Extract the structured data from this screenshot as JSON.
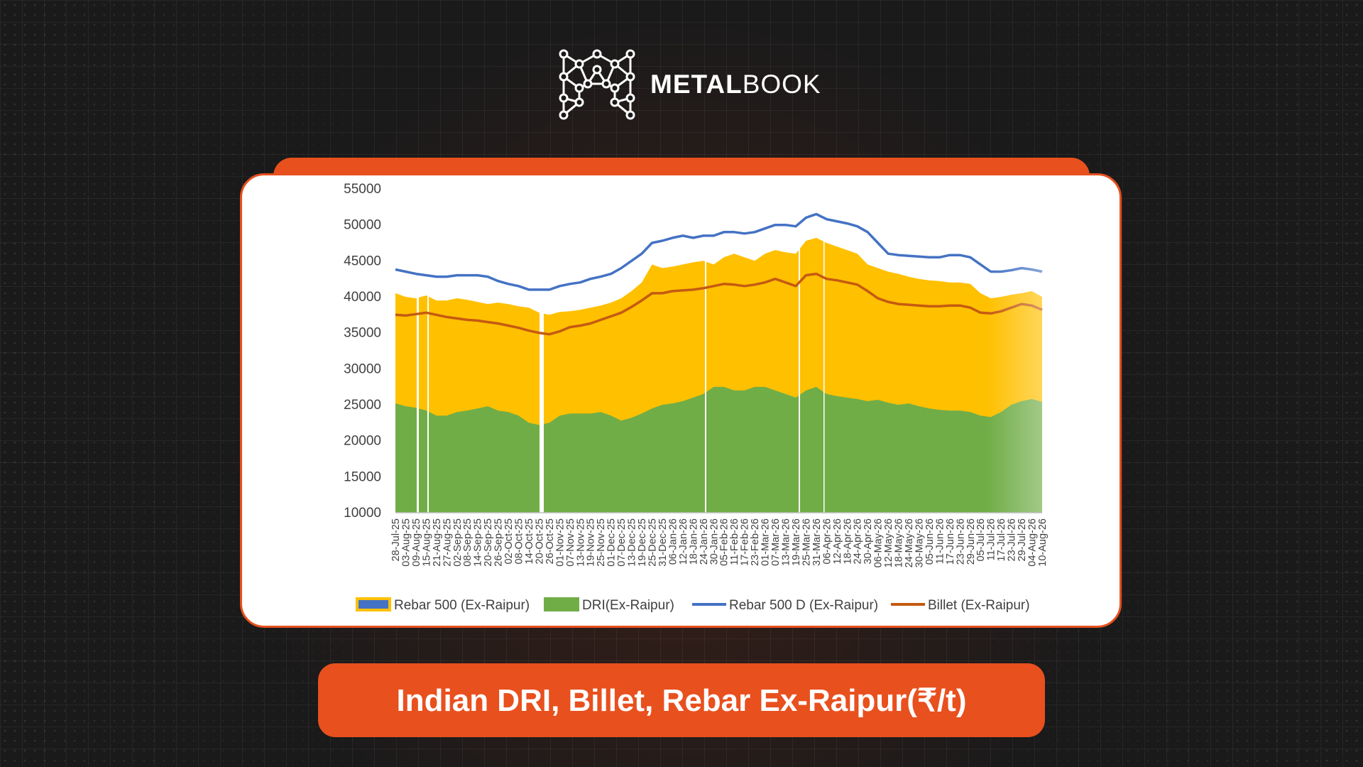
{
  "brand": {
    "name_bold": "METAL",
    "name_light": "BOOK",
    "logo_icon": "network-m-icon"
  },
  "title": "Indian DRI, Billet, Rebar Ex-Raipur(₹/t)",
  "colors": {
    "accent": "#e8501e",
    "rebar500": "#ffc000",
    "dri": "#70ad47",
    "rebar500d": "#4472c4",
    "billet": "#c55a11"
  },
  "chart_data": {
    "type": "area",
    "title": "Indian DRI, Billet, Rebar Ex-Raipur(₹/t)",
    "ylim": [
      10000,
      55000
    ],
    "yticks": [
      10000,
      15000,
      20000,
      25000,
      30000,
      35000,
      40000,
      45000,
      50000,
      55000
    ],
    "x_tick_labels": [
      "28-Jul-25",
      "03-Aug-25",
      "09-Aug-25",
      "15-Aug-25",
      "21-Aug-25",
      "27-Aug-25",
      "02-Sep-25",
      "08-Sep-25",
      "14-Sep-25",
      "20-Sep-25",
      "26-Sep-25",
      "02-Oct-25",
      "08-Oct-25",
      "14-Oct-25",
      "20-Oct-25",
      "26-Oct-25",
      "01-Nov-25",
      "07-Nov-25",
      "13-Nov-25",
      "19-Nov-25",
      "25-Nov-25",
      "01-Dec-25",
      "07-Dec-25",
      "13-Dec-25",
      "19-Dec-25",
      "25-Dec-25",
      "31-Dec-25",
      "06-Jan-26",
      "12-Jan-26",
      "18-Jan-26",
      "24-Jan-26",
      "30-Jan-26",
      "05-Feb-26",
      "11-Feb-26",
      "17-Feb-26",
      "23-Feb-26",
      "01-Mar-26",
      "07-Mar-26",
      "13-Mar-26",
      "19-Mar-26",
      "25-Mar-26",
      "31-Mar-26",
      "06-Apr-26",
      "12-Apr-26",
      "18-Apr-26",
      "24-Apr-26",
      "30-Apr-26",
      "06-May-26",
      "12-May-26",
      "18-May-26",
      "24-May-26",
      "30-May-26",
      "05-Jun-26",
      "11-Jun-26",
      "17-Jun-26",
      "23-Jun-26",
      "29-Jun-26",
      "05-Jul-26",
      "11-Jul-26",
      "17-Jul-26",
      "23-Jul-26",
      "29-Jul-26",
      "04-Aug-26",
      "10-Aug-26"
    ],
    "legend_position": "bottom",
    "series": [
      {
        "name": "Rebar 500 (Ex-Raipur)",
        "kind": "area",
        "values": [
          40500,
          40000,
          39800,
          40200,
          39500,
          39500,
          39800,
          39600,
          39300,
          39000,
          39200,
          39000,
          38700,
          38500,
          37800,
          37500,
          37900,
          38000,
          38200,
          38500,
          38800,
          39200,
          39800,
          40800,
          42000,
          44500,
          44000,
          44200,
          44500,
          44800,
          45000,
          44500,
          45500,
          46000,
          45500,
          45000,
          46000,
          46500,
          46200,
          46000,
          47800,
          48200,
          47500,
          47000,
          46500,
          46000,
          44500,
          44000,
          43500,
          43200,
          42800,
          42500,
          42300,
          42200,
          42000,
          42000,
          41800,
          40500,
          39800,
          40000,
          40300,
          40500,
          40800,
          40000
        ]
      },
      {
        "name": "DRI(Ex-Raipur)",
        "kind": "area",
        "values": [
          25200,
          24800,
          24600,
          24200,
          23500,
          23500,
          24000,
          24200,
          24500,
          24800,
          24200,
          24000,
          23500,
          22500,
          22200,
          22500,
          23500,
          23800,
          23800,
          23800,
          24000,
          23500,
          22800,
          23200,
          23800,
          24500,
          25000,
          25200,
          25500,
          26000,
          26500,
          27500,
          27500,
          27000,
          27000,
          27500,
          27500,
          27000,
          26500,
          26000,
          27000,
          27500,
          26500,
          26200,
          26000,
          25800,
          25500,
          25700,
          25300,
          25000,
          25200,
          24800,
          24500,
          24300,
          24200,
          24200,
          24000,
          23500,
          23300,
          24000,
          25000,
          25500,
          25800,
          25400
        ]
      },
      {
        "name": "Rebar 500 D (Ex-Raipur)",
        "kind": "line",
        "values": [
          43800,
          43500,
          43200,
          43000,
          42800,
          42800,
          43000,
          43000,
          43000,
          42800,
          42200,
          41800,
          41500,
          41000,
          41000,
          41000,
          41500,
          41800,
          42000,
          42500,
          42800,
          43200,
          44000,
          45000,
          46000,
          47500,
          47800,
          48200,
          48500,
          48200,
          48500,
          48500,
          49000,
          49000,
          48800,
          49000,
          49500,
          50000,
          50000,
          49800,
          51000,
          51500,
          50800,
          50500,
          50200,
          49800,
          49000,
          47500,
          46000,
          45800,
          45700,
          45600,
          45500,
          45500,
          45800,
          45800,
          45500,
          44500,
          43500,
          43500,
          43700,
          44000,
          43800,
          43500
        ]
      },
      {
        "name": "Billet (Ex-Raipur)",
        "kind": "line",
        "values": [
          37500,
          37400,
          37600,
          37800,
          37500,
          37200,
          37000,
          36800,
          36700,
          36500,
          36300,
          36000,
          35700,
          35300,
          35000,
          34800,
          35200,
          35800,
          36000,
          36300,
          36800,
          37300,
          37800,
          38600,
          39500,
          40500,
          40500,
          40800,
          40900,
          41000,
          41200,
          41500,
          41800,
          41700,
          41500,
          41700,
          42000,
          42500,
          42000,
          41500,
          43000,
          43200,
          42500,
          42300,
          42000,
          41700,
          40800,
          39800,
          39300,
          39000,
          38900,
          38800,
          38700,
          38700,
          38800,
          38800,
          38500,
          37800,
          37700,
          38000,
          38500,
          39000,
          38800,
          38200
        ]
      }
    ]
  }
}
